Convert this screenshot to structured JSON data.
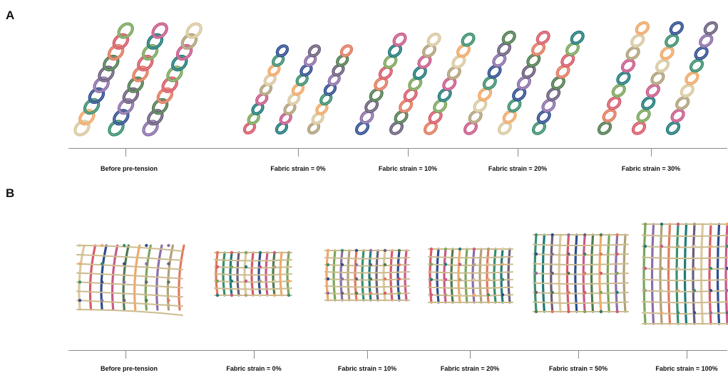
{
  "panels": [
    {
      "letter": "A",
      "captions": [
        "Before pre-tension",
        "Fabric strain = 0%",
        "Fabric strain = 10%",
        "Fabric strain = 20%",
        "Fabric strain = 30%"
      ]
    },
    {
      "letter": "B",
      "captions": [
        "Before pre-tension",
        "Fabric strain = 0%",
        "Fabric strain = 10%",
        "Fabric strain = 20%",
        "Fabric strain = 50%",
        "Fabric strain = 100%"
      ]
    }
  ],
  "colors": {
    "yarns": [
      "#d9c9a0",
      "#e07a5f",
      "#f0a868",
      "#d65a6a",
      "#3b8f6e",
      "#7aa65c",
      "#2e4d8f",
      "#1f7a7a",
      "#8a6fa8",
      "#c85a8a",
      "#6a5d7b",
      "#b0a07a",
      "#4f7b4f"
    ],
    "axis": "#8a8a8a"
  }
}
